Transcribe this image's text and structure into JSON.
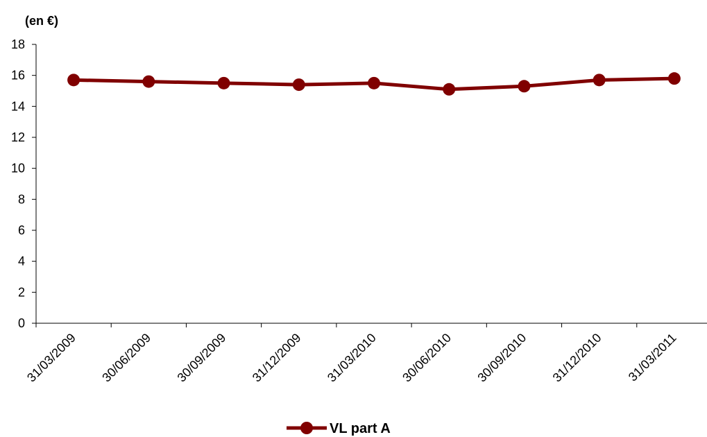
{
  "chart_data": {
    "type": "line",
    "unit_label": "(en €)",
    "categories": [
      "31/03/2009",
      "30/06/2009",
      "30/09/2009",
      "31/12/2009",
      "31/03/2010",
      "30/06/2010",
      "30/09/2010",
      "31/12/2010",
      "31/03/2011"
    ],
    "series": [
      {
        "name": "VL part A",
        "values": [
          15.7,
          15.6,
          15.5,
          15.4,
          15.5,
          15.1,
          15.3,
          15.7,
          15.8
        ],
        "color": "#800000"
      }
    ],
    "ylim": [
      0,
      18
    ],
    "yticks": [
      "0",
      "2",
      "4",
      "6",
      "8",
      "10",
      "12",
      "14",
      "16",
      "18"
    ],
    "grid": false,
    "legend": "bottom-center"
  }
}
